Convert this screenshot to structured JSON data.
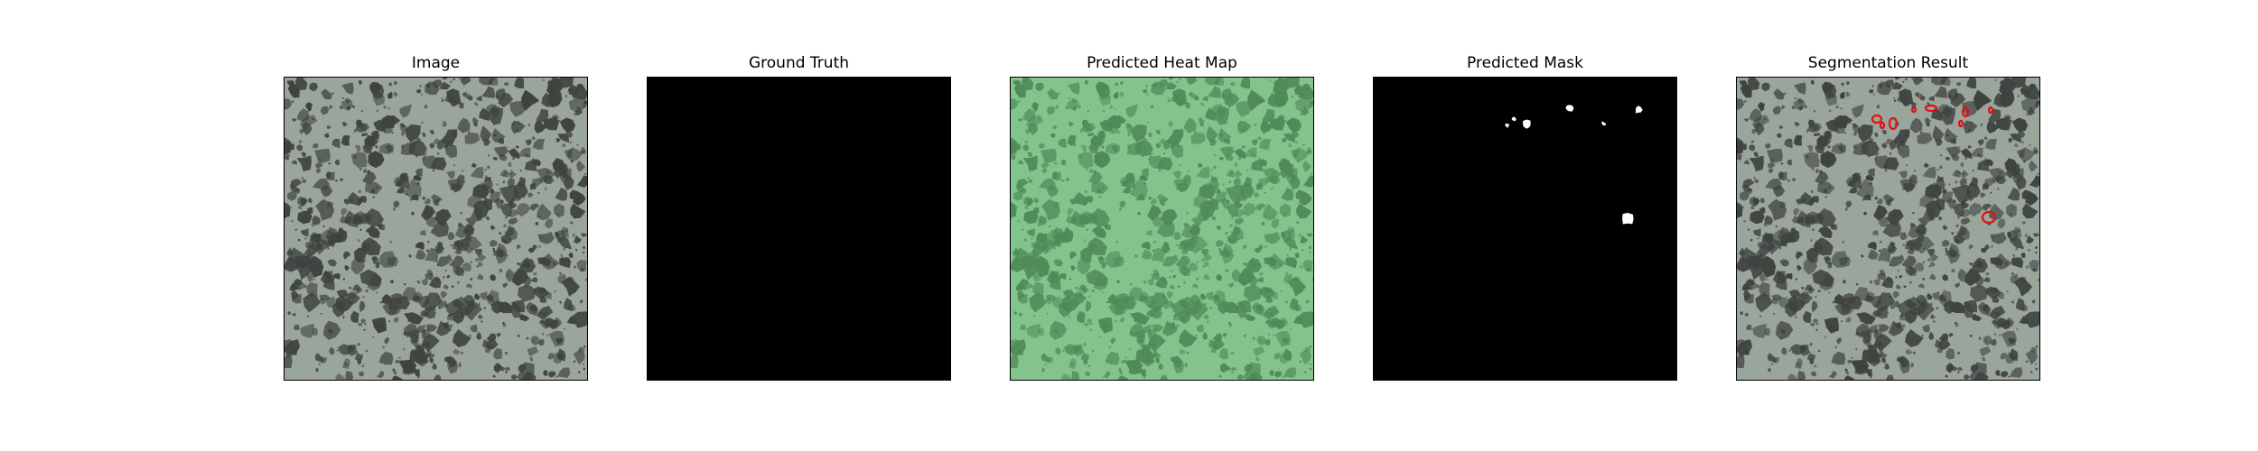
{
  "panels": [
    {
      "title": "Image",
      "kind": "texture-gray",
      "bg": "#9aa59b",
      "spot": "#3f4340"
    },
    {
      "title": "Ground Truth",
      "kind": "black",
      "bg": "#000000"
    },
    {
      "title": "Predicted Heat Map",
      "kind": "texture-green",
      "bg": "#83c38c",
      "spot": "#4f8a58"
    },
    {
      "title": "Predicted Mask",
      "kind": "mask",
      "bg": "#000000",
      "fg": "#ffffff"
    },
    {
      "title": "Segmentation Result",
      "kind": "texture-overlay",
      "bg": "#9aa59b",
      "spot": "#3f4340",
      "contour": "#e01010"
    }
  ]
}
